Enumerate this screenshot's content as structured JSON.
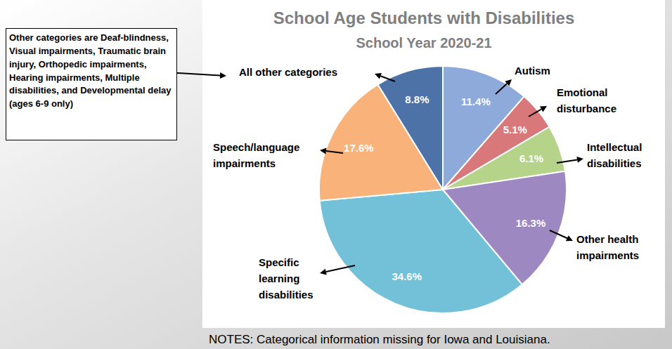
{
  "chart_data": {
    "type": "pie",
    "title": "School Age Students with Disabilities",
    "subtitle": "School Year 2020-21",
    "categories": [
      "Autism",
      "Emotional disturbance",
      "Intellectual disabilities",
      "Other health impairments",
      "Specific learning disabilities",
      "Speech/language impairments",
      "All other categories"
    ],
    "values": [
      11.4,
      5.1,
      6.1,
      16.3,
      34.6,
      17.6,
      8.8
    ],
    "value_labels": [
      "11.4%",
      "5.1%",
      "6.1%",
      "16.3%",
      "34.6%",
      "17.6%",
      "8.8%"
    ],
    "colors": [
      "#8eaadb",
      "#d9787a",
      "#b5d389",
      "#9d88c2",
      "#72c1d8",
      "#f8b27a",
      "#4d72a8"
    ],
    "data_labels": true,
    "annotations": [
      "Other categories are Deaf-blindness, Visual impairments, Traumatic brain injury, Orthopedic impairments, Hearing impairments, Multiple disabilities, and Developmental delay (ages 6-9 only)",
      "NOTES: Categorical information missing for Iowa and Louisiana."
    ]
  }
}
